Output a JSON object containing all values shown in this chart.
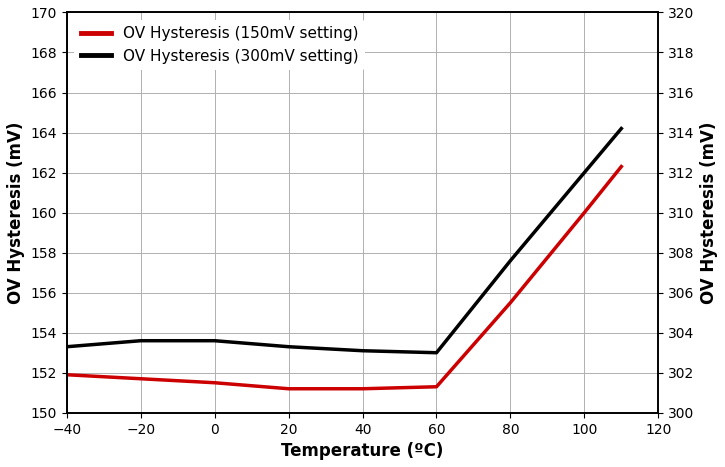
{
  "xlabel": "Temperature (ºC)",
  "ylabel_left": "OV Hysteresis (mV)",
  "ylabel_right": "OV Hysteresis (mV)",
  "xlim": [
    -40,
    120
  ],
  "xticks": [
    -40,
    -20,
    0,
    20,
    40,
    60,
    80,
    100,
    120
  ],
  "ylim_left": [
    150,
    170
  ],
  "ylim_right": [
    300,
    320
  ],
  "yticks_left": [
    150,
    152,
    154,
    156,
    158,
    160,
    162,
    164,
    166,
    168,
    170
  ],
  "yticks_right": [
    300,
    302,
    304,
    306,
    308,
    310,
    312,
    314,
    316,
    318,
    320
  ],
  "red_x": [
    -40,
    -20,
    0,
    20,
    40,
    60,
    80,
    100,
    110
  ],
  "red_y": [
    151.9,
    151.7,
    151.5,
    151.2,
    151.2,
    151.3,
    155.5,
    160.0,
    162.3
  ],
  "black_x": [
    -40,
    -20,
    0,
    20,
    40,
    60,
    80,
    100,
    110
  ],
  "black_y": [
    303.3,
    303.6,
    303.6,
    303.3,
    303.1,
    303.0,
    307.6,
    312.0,
    314.2
  ],
  "red_color": "#cc0000",
  "black_color": "#000000",
  "red_label": "OV Hysteresis (150mV setting)",
  "black_label": "OV Hysteresis (300mV setting)",
  "linewidth": 2.5,
  "legend_linewidth": 3.5,
  "background_color": "#ffffff",
  "grid_color": "#b0b0b0",
  "grid_linewidth": 0.7,
  "tick_labelsize": 10,
  "axis_labelsize": 12
}
